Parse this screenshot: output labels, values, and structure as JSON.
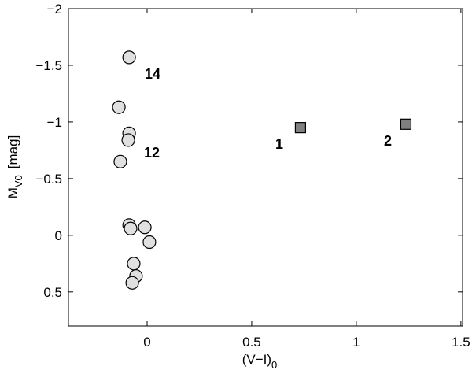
{
  "chart_data": {
    "type": "scatter",
    "x_label": {
      "main": "(V−I)",
      "sub": "0"
    },
    "y_label": {
      "main": "M",
      "sub": "V0",
      "unit": "[mag]"
    },
    "xlim": [
      -0.376,
      1.508
    ],
    "ylim": [
      -2,
      0.8
    ],
    "y_inverted": true,
    "xticks": [
      0,
      0.5,
      1,
      1.5
    ],
    "yticks": [
      {
        "value": -2,
        "label": "−2"
      },
      {
        "value": -1.5,
        "label": "−1.5"
      },
      {
        "value": -1,
        "label": "−1"
      },
      {
        "value": -0.5,
        "label": "−0.5"
      },
      0,
      0.5
    ],
    "series": [
      {
        "marker": "circle",
        "color": "#e0e0e0",
        "x": [
          -0.086,
          -0.135,
          -0.086,
          -0.09,
          -0.128,
          -0.086,
          -0.079,
          -0.011,
          0.011,
          -0.064,
          -0.053,
          -0.071
        ],
        "values": [
          -1.57,
          -1.13,
          -0.9,
          -0.84,
          -0.65,
          -0.09,
          -0.06,
          -0.07,
          0.06,
          0.25,
          0.36,
          0.42
        ]
      },
      {
        "marker": "square",
        "color": "#808080",
        "x": [
          0.733,
          1.237
        ],
        "values": [
          -0.95,
          -0.98
        ]
      }
    ],
    "annotations": [
      "14",
      "12",
      "1",
      "2"
    ]
  }
}
